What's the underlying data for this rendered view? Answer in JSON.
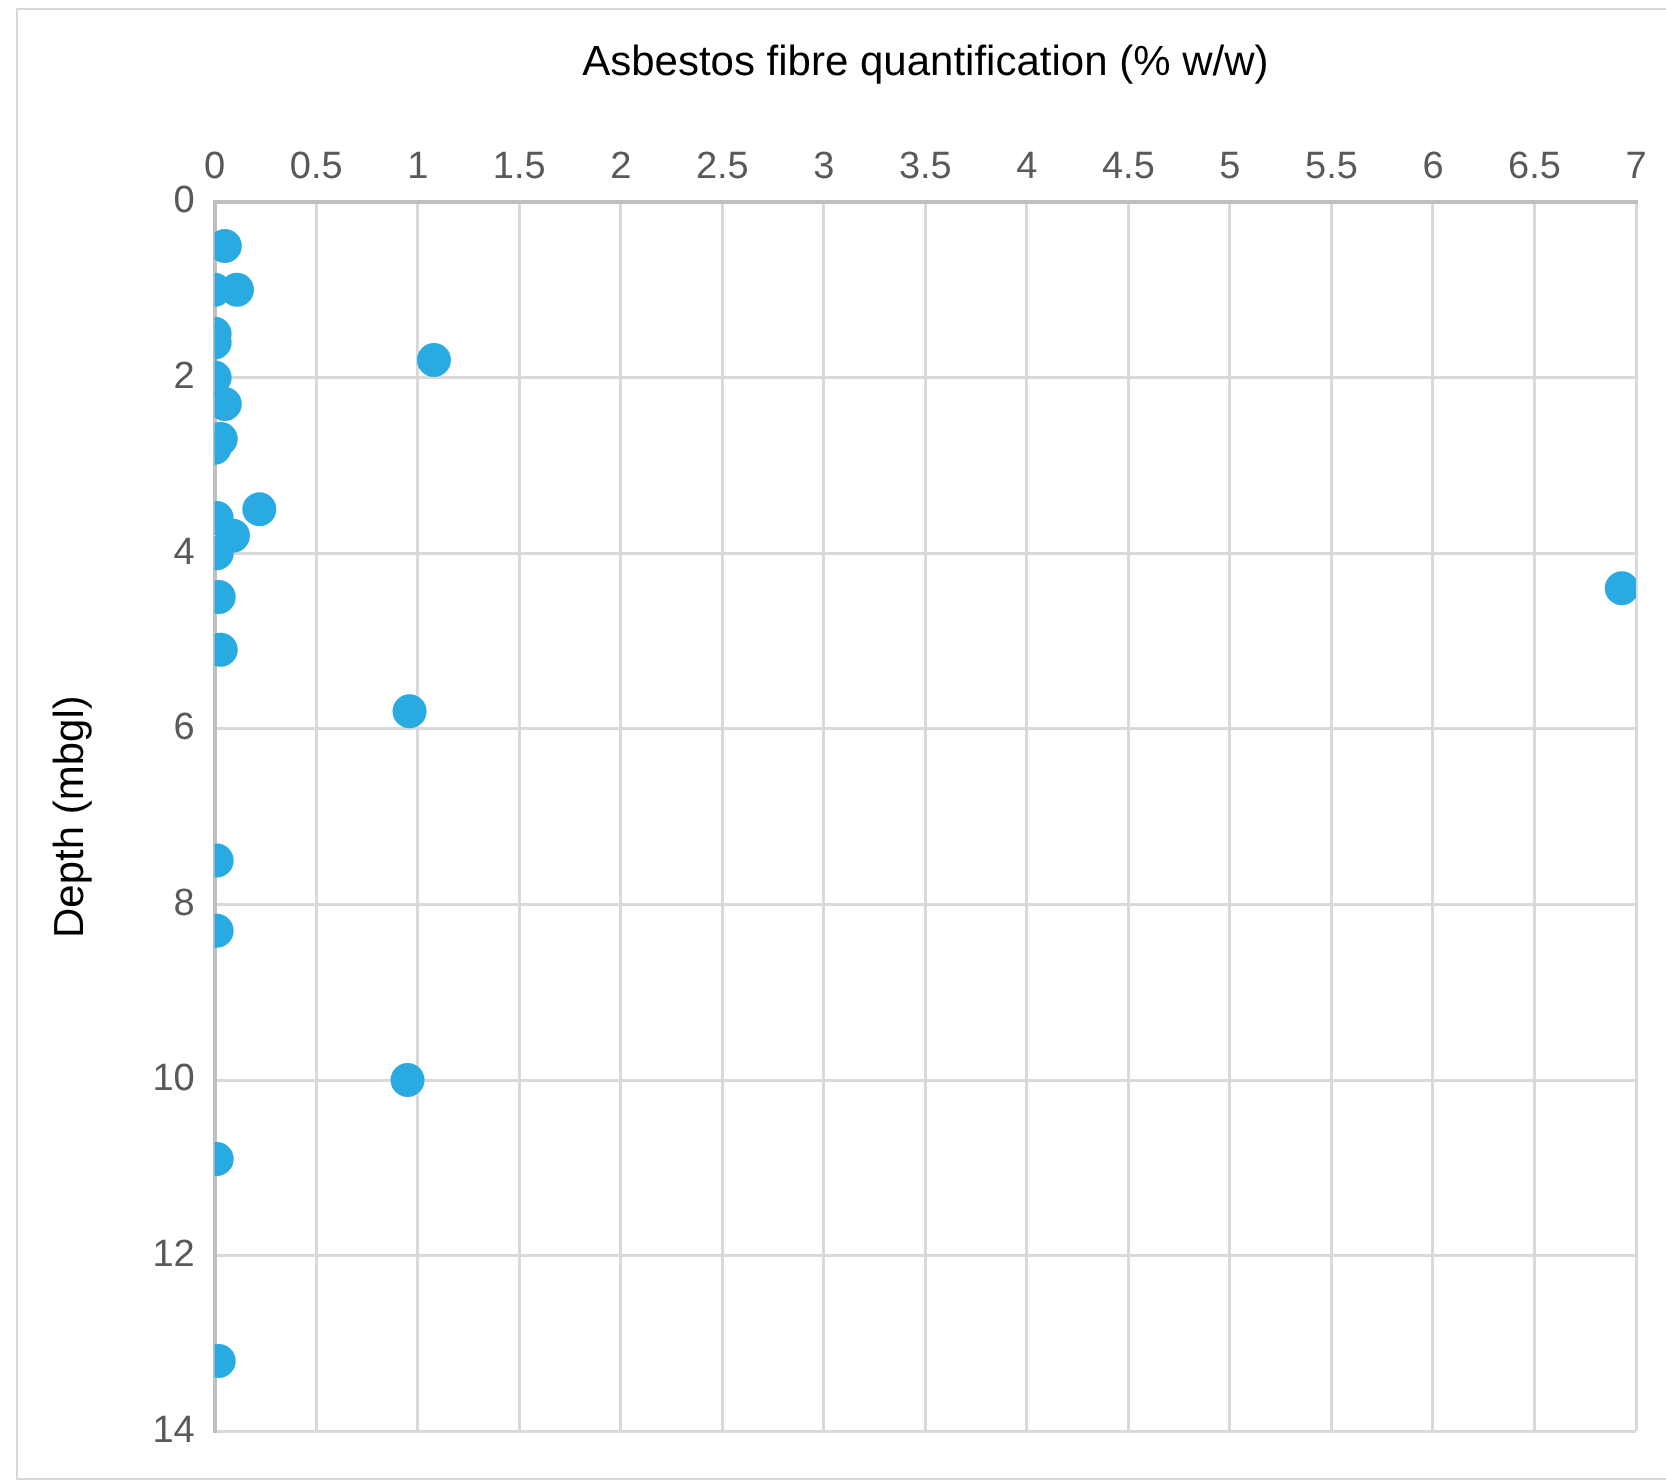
{
  "chart_data": {
    "type": "scatter",
    "xlabel": "Asbestos fibre quantification (% w/w)",
    "ylabel": "Depth (mbgl)",
    "series": [
      {
        "color": "#29abe2",
        "x": [
          0.05,
          0,
          0.11,
          0,
          0,
          1.08,
          0,
          0.05,
          0.03,
          0,
          0.22,
          0.01,
          0.09,
          0.01,
          0.02,
          0.03,
          6.93,
          0.96,
          0.01,
          0.01,
          0.95,
          0.01,
          0.02
        ],
        "values": [
          0.5,
          1.0,
          1.0,
          1.5,
          1.6,
          1.8,
          2.0,
          2.3,
          2.7,
          2.8,
          3.5,
          3.6,
          3.8,
          4.0,
          4.5,
          5.1,
          4.4,
          5.8,
          7.5,
          8.3,
          10.0,
          10.9,
          13.2
        ]
      }
    ],
    "xlim": [
      0,
      7
    ],
    "xticks": [
      0,
      0.5,
      1,
      1.5,
      2,
      2.5,
      3,
      3.5,
      4,
      4.5,
      5,
      5.5,
      6,
      6.5,
      7
    ],
    "ylim": [
      14,
      0
    ],
    "yticks": [
      0,
      2,
      4,
      6,
      8,
      10,
      12,
      14
    ],
    "grid": true,
    "legend": false,
    "marker": "circle"
  }
}
